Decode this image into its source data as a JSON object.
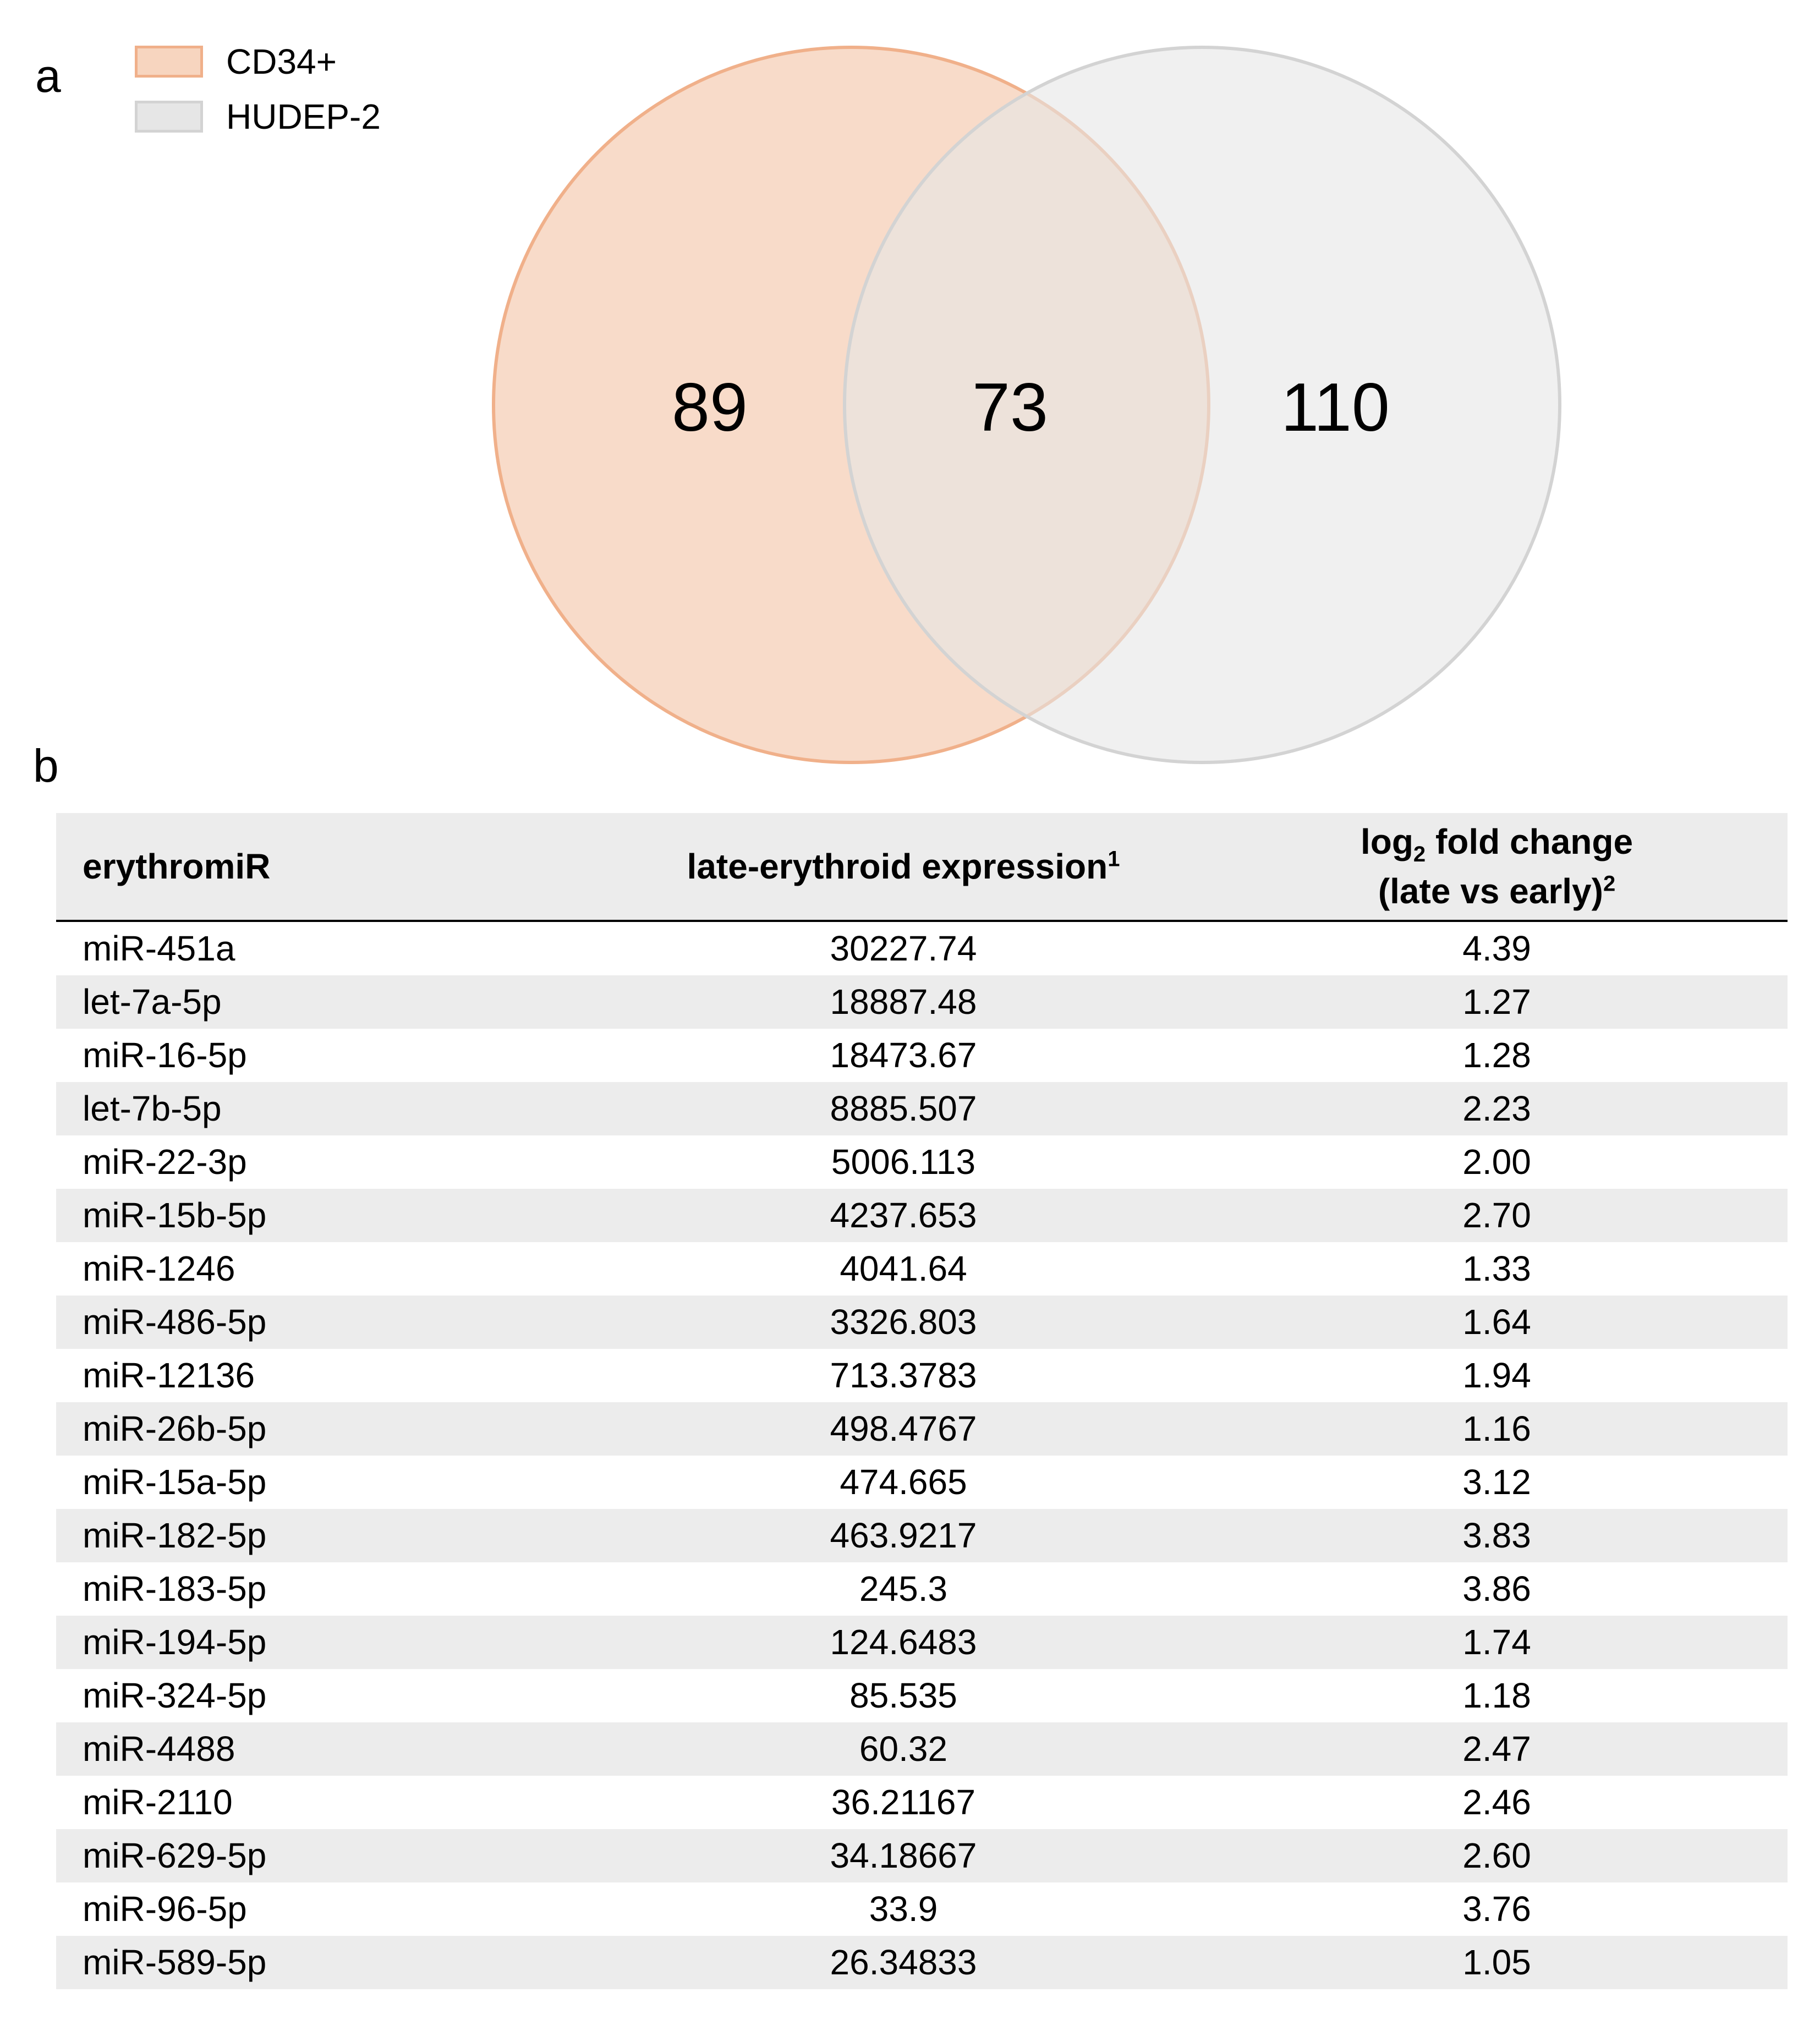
{
  "panel_a": {
    "label": "a",
    "legend": [
      {
        "name": "CD34+",
        "fill": "#f7d5bf",
        "stroke": "#f0b08a"
      },
      {
        "name": "HUDEP-2",
        "fill": "#e6e6e6",
        "stroke": "#d3d3d3"
      }
    ],
    "venn": {
      "left_only": "89",
      "intersection": "73",
      "right_only": "110"
    }
  },
  "panel_b": {
    "label": "b",
    "table": {
      "headers": {
        "col1": "erythromiR",
        "col2": "late-erythroid expression",
        "col2_sup": "1",
        "col3_prefix": "log",
        "col3_sub": "2",
        "col3_suffix": " fold change",
        "col3_line2": "(late vs early)",
        "col3_sup": "2"
      },
      "rows": [
        [
          "miR-451a",
          "30227.74",
          "4.39"
        ],
        [
          "let-7a-5p",
          "18887.48",
          "1.27"
        ],
        [
          "miR-16-5p",
          "18473.67",
          "1.28"
        ],
        [
          "let-7b-5p",
          "8885.507",
          "2.23"
        ],
        [
          "miR-22-3p",
          "5006.113",
          "2.00"
        ],
        [
          "miR-15b-5p",
          "4237.653",
          "2.70"
        ],
        [
          "miR-1246",
          "4041.64",
          "1.33"
        ],
        [
          "miR-486-5p",
          "3326.803",
          "1.64"
        ],
        [
          "miR-12136",
          "713.3783",
          "1.94"
        ],
        [
          "miR-26b-5p",
          "498.4767",
          "1.16"
        ],
        [
          "miR-15a-5p",
          "474.665",
          "3.12"
        ],
        [
          "miR-182-5p",
          "463.9217",
          "3.83"
        ],
        [
          "miR-183-5p",
          "245.3",
          "3.86"
        ],
        [
          "miR-194-5p",
          "124.6483",
          "1.74"
        ],
        [
          "miR-324-5p",
          "85.535",
          "1.18"
        ],
        [
          "miR-4488",
          "60.32",
          "2.47"
        ],
        [
          "miR-2110",
          "36.21167",
          "2.46"
        ],
        [
          "miR-629-5p",
          "34.18667",
          "2.60"
        ],
        [
          "miR-96-5p",
          "33.9",
          "3.76"
        ],
        [
          "miR-589-5p",
          "26.34833",
          "1.05"
        ]
      ]
    }
  }
}
